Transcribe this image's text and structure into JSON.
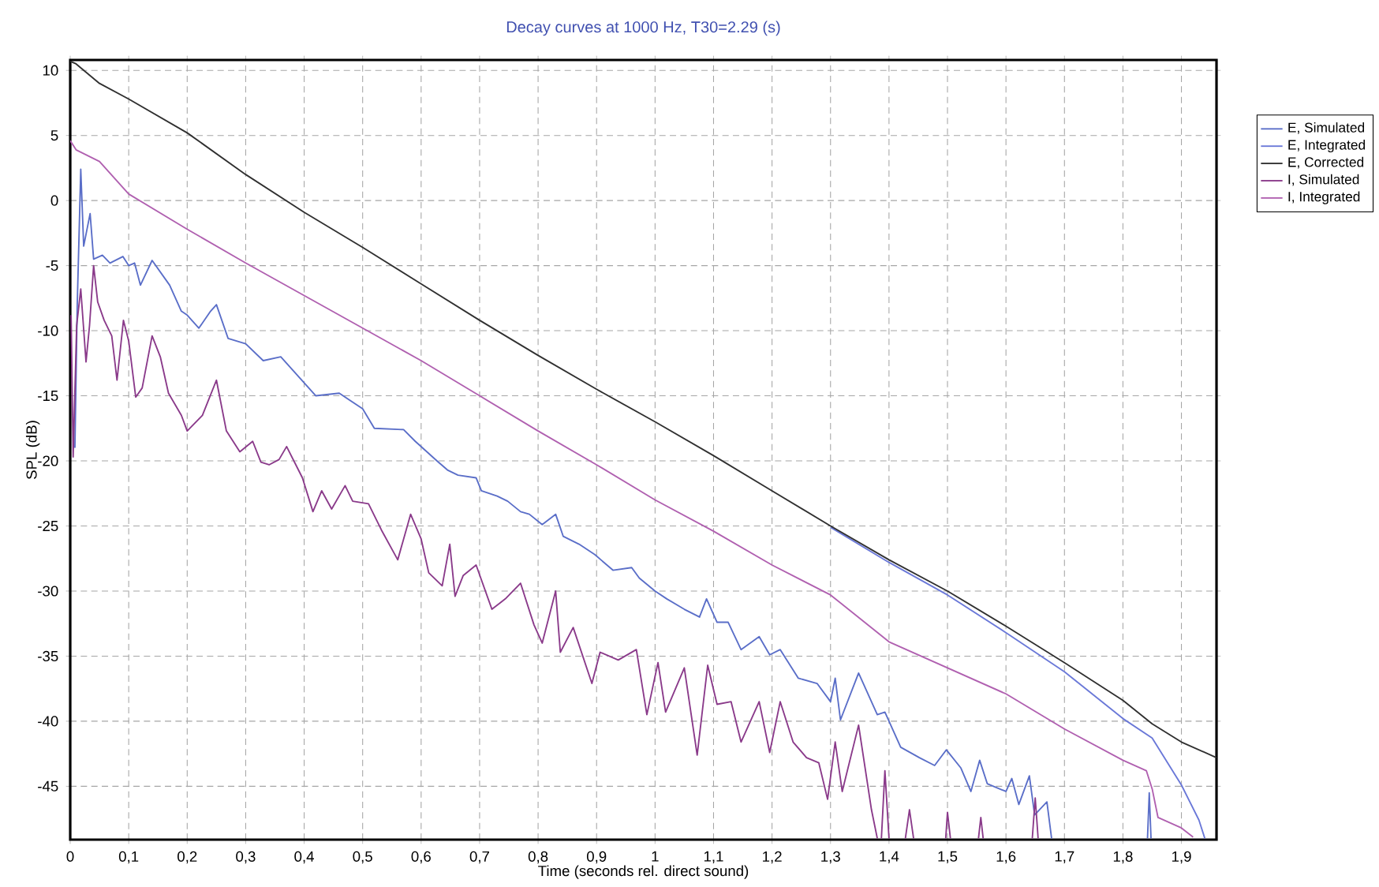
{
  "chart_data": {
    "type": "line",
    "title": "Decay curves at 1000 Hz, T30=2.29 (s)",
    "xlabel": "Time (seconds rel. direct sound)",
    "ylabel": "SPL (dB)",
    "xlim": [
      0,
      1.96
    ],
    "ylim": [
      -49.1,
      10.8
    ],
    "xticks": [
      0,
      {
        "value": 0.1,
        "label": "0,1"
      },
      {
        "value": 0.2,
        "label": "0,2"
      },
      {
        "value": 0.3,
        "label": "0,3"
      },
      {
        "value": 0.4,
        "label": "0,4"
      },
      {
        "value": 0.5,
        "label": "0,5"
      },
      {
        "value": 0.6,
        "label": "0,6"
      },
      {
        "value": 0.7,
        "label": "0,7"
      },
      {
        "value": 0.8,
        "label": "0,8"
      },
      {
        "value": 0.9,
        "label": "0,9"
      },
      1,
      {
        "value": 1.1,
        "label": "1,1"
      },
      {
        "value": 1.2,
        "label": "1,2"
      },
      {
        "value": 1.3,
        "label": "1,3"
      },
      {
        "value": 1.4,
        "label": "1,4"
      },
      {
        "value": 1.5,
        "label": "1,5"
      },
      {
        "value": 1.6,
        "label": "1,6"
      },
      {
        "value": 1.7,
        "label": "1,7"
      },
      {
        "value": 1.8,
        "label": "1,8"
      },
      {
        "value": 1.9,
        "label": "1,9"
      }
    ],
    "yticks": [
      10,
      5,
      0,
      -5,
      -10,
      -15,
      -20,
      -25,
      -30,
      -35,
      -40,
      -45
    ],
    "grid": true,
    "legend": "right",
    "marker": "none",
    "line_style": "solid",
    "series": [
      {
        "name": "E, Simulated",
        "color": "#5a6ec8",
        "x": [
          0.008,
          0.012,
          0.018,
          0.023,
          0.034,
          0.04,
          0.055,
          0.068,
          0.09,
          0.1,
          0.11,
          0.12,
          0.14,
          0.17,
          0.19,
          0.2,
          0.22,
          0.24,
          0.25,
          0.27,
          0.3,
          0.33,
          0.36,
          0.4,
          0.42,
          0.46,
          0.5,
          0.52,
          0.57,
          0.59,
          0.627,
          0.645,
          0.663,
          0.694,
          0.703,
          0.73,
          0.748,
          0.77,
          0.785,
          0.807,
          0.83,
          0.843,
          0.87,
          0.897,
          0.928,
          0.96,
          0.973,
          1.0,
          1.02,
          1.05,
          1.076,
          1.088,
          1.106,
          1.125,
          1.147,
          1.178,
          1.196,
          1.214,
          1.245,
          1.277,
          1.3,
          1.308,
          1.317,
          1.348,
          1.38,
          1.393,
          1.42,
          1.452,
          1.478,
          1.498,
          1.523,
          1.54,
          1.555,
          1.568,
          1.6,
          1.61,
          1.622,
          1.64,
          1.649,
          1.67,
          1.678,
          1.76,
          1.842,
          1.845,
          1.848
        ],
        "values": [
          -19,
          -8,
          2.4,
          -3.5,
          -1,
          -4.5,
          -4.2,
          -4.8,
          -4.3,
          -5,
          -4.8,
          -6.5,
          -4.6,
          -6.5,
          -8.5,
          -8.8,
          -9.8,
          -8.5,
          -8,
          -10.6,
          -11,
          -12.3,
          -12,
          -14,
          -15,
          -14.8,
          -16,
          -17.5,
          -17.6,
          -18.5,
          -20,
          -20.7,
          -21.1,
          -21.3,
          -22.3,
          -22.7,
          -23.1,
          -23.9,
          -24.1,
          -24.9,
          -24.1,
          -25.8,
          -26.4,
          -27.2,
          -28.4,
          -28.2,
          -29,
          -30,
          -30.6,
          -31.4,
          -32,
          -30.6,
          -32.4,
          -32.4,
          -34.5,
          -33.5,
          -34.9,
          -34.5,
          -36.7,
          -37.1,
          -38.5,
          -36.7,
          -39.9,
          -36.3,
          -39.5,
          -39.3,
          -42,
          -42.8,
          -43.4,
          -42.2,
          -43.6,
          -45.4,
          -43,
          -44.8,
          -45.4,
          -44.4,
          -46.4,
          -44.2,
          -47.2,
          -46.2,
          -49,
          null,
          -49,
          -45.5,
          -49
        ]
      },
      {
        "name": "E, Integrated",
        "color": "#6a78d8",
        "x": [
          1.3,
          1.4,
          1.5,
          1.6,
          1.7,
          1.8,
          1.85,
          1.9,
          1.93,
          1.94
        ],
        "values": [
          -25.1,
          -27.8,
          -30.3,
          -33.2,
          -36.2,
          -39.8,
          -41.3,
          -44.9,
          -47.6,
          -49
        ]
      },
      {
        "name": "E, Corrected",
        "color": "#303030",
        "x": [
          0,
          0.01,
          0.05,
          0.1,
          0.2,
          0.3,
          0.4,
          0.5,
          0.6,
          0.7,
          0.8,
          0.9,
          1.0,
          1.1,
          1.2,
          1.3,
          1.4,
          1.5,
          1.6,
          1.7,
          1.8,
          1.85,
          1.9,
          1.96
        ],
        "values": [
          10.7,
          10.5,
          9,
          7.8,
          5.2,
          2,
          -0.9,
          -3.6,
          -6.4,
          -9.2,
          -11.9,
          -14.5,
          -17,
          -19.6,
          -22.3,
          -25,
          -27.6,
          -30,
          -32.7,
          -35.5,
          -38.4,
          -40.2,
          -41.6,
          -42.8
        ]
      },
      {
        "name": "I, Simulated",
        "color": "#8a3a8a",
        "x": [
          0.0015,
          0.005,
          0.011,
          0.018,
          0.027,
          0.033,
          0.04,
          0.047,
          0.058,
          0.071,
          0.08,
          0.091,
          0.1,
          0.112,
          0.123,
          0.14,
          0.154,
          0.168,
          0.19,
          0.2,
          0.226,
          0.25,
          0.267,
          0.29,
          0.312,
          0.326,
          0.34,
          0.357,
          0.37,
          0.397,
          0.415,
          0.43,
          0.447,
          0.47,
          0.483,
          0.51,
          0.532,
          0.56,
          0.582,
          0.6,
          0.613,
          0.636,
          0.649,
          0.658,
          0.672,
          0.694,
          0.721,
          0.744,
          0.77,
          0.793,
          0.807,
          0.83,
          0.838,
          0.86,
          0.892,
          0.906,
          0.937,
          0.968,
          0.986,
          1.005,
          1.018,
          1.05,
          1.072,
          1.09,
          1.106,
          1.13,
          1.147,
          1.178,
          1.196,
          1.214,
          1.236,
          1.259,
          1.28,
          1.295,
          1.308,
          1.32,
          1.348,
          1.37,
          1.38,
          1.384,
          1.387,
          1.393,
          1.4,
          1.414,
          1.428,
          1.435,
          1.442,
          1.47,
          1.497,
          1.5,
          1.505,
          1.53,
          1.553,
          1.557,
          1.561,
          1.6,
          1.645,
          1.65,
          1.655
        ],
        "values": [
          -8.8,
          -19.7,
          -9.6,
          -6.8,
          -12.4,
          -9.6,
          -5,
          -7.8,
          -9.2,
          -10.4,
          -13.8,
          -9.2,
          -10.8,
          -15.1,
          -14.4,
          -10.4,
          -12,
          -14.8,
          -16.5,
          -17.7,
          -16.5,
          -13.8,
          -17.7,
          -19.3,
          -18.5,
          -20.1,
          -20.3,
          -19.9,
          -18.9,
          -21.3,
          -23.9,
          -22.3,
          -23.7,
          -21.9,
          -23.1,
          -23.3,
          -25.3,
          -27.6,
          -24.1,
          -26,
          -28.6,
          -29.6,
          -26.4,
          -30.4,
          -28.8,
          -28,
          -31.4,
          -30.6,
          -29.4,
          -32.6,
          -34,
          -30,
          -34.7,
          -32.8,
          -37.1,
          -34.7,
          -35.3,
          -34.5,
          -39.5,
          -35.5,
          -39.3,
          -35.9,
          -42.6,
          -35.7,
          -38.7,
          -38.5,
          -41.6,
          -38.5,
          -42.4,
          -38.5,
          -41.6,
          -42.8,
          -43.2,
          -46,
          -41.6,
          -45.4,
          -40.3,
          -46.8,
          -49,
          null,
          -49,
          -43.8,
          -49,
          null,
          -49,
          -46.8,
          -49,
          null,
          -49,
          -47,
          -49,
          null,
          -49,
          -47.4,
          -49,
          null,
          -49,
          -45.9,
          -49
        ]
      },
      {
        "name": "I, Integrated",
        "color": "#b060b0",
        "x": [
          0,
          0.01,
          0.05,
          0.1,
          0.2,
          0.3,
          0.4,
          0.5,
          0.6,
          0.7,
          0.8,
          0.9,
          1.0,
          1.1,
          1.2,
          1.3,
          1.4,
          1.5,
          1.6,
          1.7,
          1.8,
          1.84,
          1.85,
          1.86,
          1.9,
          1.92
        ],
        "values": [
          4.6,
          3.9,
          3,
          0.5,
          -2.2,
          -4.8,
          -7.3,
          -9.8,
          -12.3,
          -15,
          -17.7,
          -20.3,
          -23,
          -25.4,
          -28,
          -30.3,
          -33.9,
          -35.9,
          -37.9,
          -40.6,
          -43,
          -43.8,
          -45.2,
          -47.4,
          -48.2,
          -48.9
        ]
      }
    ]
  }
}
